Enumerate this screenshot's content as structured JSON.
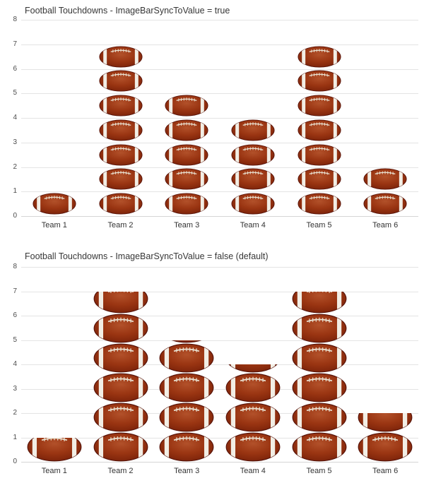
{
  "accent_colors": {
    "football_body": "#9a3512",
    "football_dark_edge": "#6e1b06",
    "football_stripe": "#f2eee5",
    "gridline": "#e4e4e4",
    "title_text": "#373737"
  },
  "icons": {
    "bar_image": "football-icon"
  },
  "chart_data": [
    {
      "type": "bar",
      "title": "Football Touchdowns - ImageBarSyncToValue = true",
      "categories": [
        "Team 1",
        "Team 2",
        "Team 3",
        "Team 4",
        "Team 5",
        "Team 6"
      ],
      "values": [
        1,
        7,
        5,
        4,
        7,
        2
      ],
      "xlabel": "",
      "ylabel": "",
      "ylim": [
        0,
        8
      ],
      "yticks": [
        0,
        1,
        2,
        3,
        4,
        5,
        6,
        7,
        8
      ],
      "grid": "horizontal",
      "legend": "none",
      "sync_to_value": true
    },
    {
      "type": "bar",
      "title": "Football Touchdowns - ImageBarSyncToValue = false (default)",
      "categories": [
        "Team 1",
        "Team 2",
        "Team 3",
        "Team 4",
        "Team 5",
        "Team 6"
      ],
      "values": [
        1,
        7,
        5,
        4,
        7,
        2
      ],
      "xlabel": "",
      "ylabel": "",
      "ylim": [
        0,
        8
      ],
      "yticks": [
        0,
        1,
        2,
        3,
        4,
        5,
        6,
        7,
        8
      ],
      "grid": "horizontal",
      "legend": "none",
      "sync_to_value": false
    }
  ]
}
